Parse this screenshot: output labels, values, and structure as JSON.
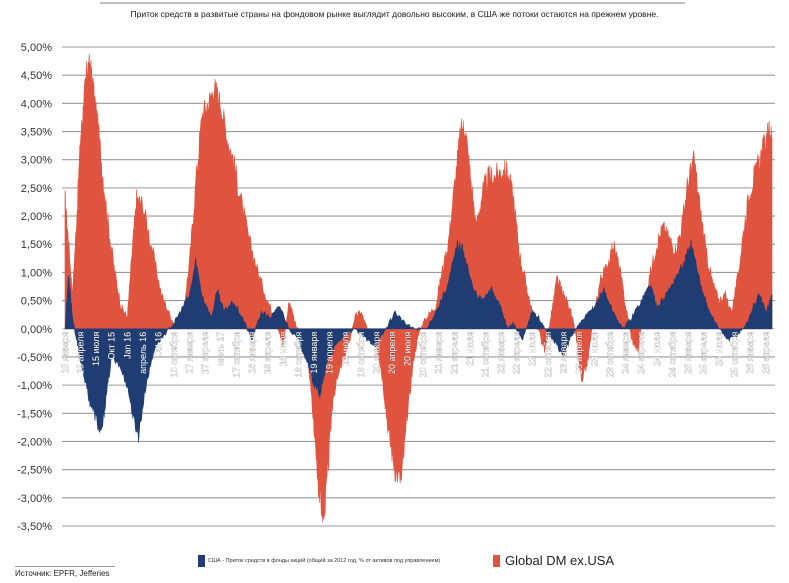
{
  "title": "Приток средств в развитые страны на фондовом рынке выглядит довольно высоким, в США же потоки остаются на прежнем уровне.",
  "source": "Источник: EPFR, Jefferies",
  "colors": {
    "us": "#1f3d73",
    "dm": "#e0533f",
    "grid": "#9a9a9a",
    "zero": "#cccccc"
  },
  "chart_data": {
    "type": "area",
    "title": "Приток средств в развитые страны на фондовом рынке выглядит довольно высоким, в США же потоки остаются на прежнем уровне.",
    "ylim": [
      -3.5,
      5.0
    ],
    "yticks": [
      "5,00%",
      "4,50%",
      "4,00%",
      "3,50%",
      "3,00%",
      "2,50%",
      "2,00%",
      "1,50%",
      "1,00%",
      "0,50%",
      "0,00%",
      "-0,50%",
      "-1,00%",
      "-1,50%",
      "-2,00%",
      "-2,50%",
      "-3,00%",
      "-3,50%"
    ],
    "grid": true,
    "legend_position": "bottom",
    "xticks": [
      {
        "label": "15 января",
        "t": 0.0
      },
      {
        "label": "15 апреля",
        "t": 0.25
      },
      {
        "label": "15 июля",
        "t": 0.5
      },
      {
        "label": "Окт 15",
        "t": 0.75
      },
      {
        "label": "Jan 16",
        "t": 1.0
      },
      {
        "label": "апрель 16",
        "t": 1.25
      },
      {
        "label": "Jul 16",
        "t": 1.5
      },
      {
        "label": "10 октября",
        "t": 1.75
      },
      {
        "label": "17 января",
        "t": 2.0
      },
      {
        "label": "17 апреля",
        "t": 2.25
      },
      {
        "label": "июль 17",
        "t": 2.5
      },
      {
        "label": "17 октября",
        "t": 2.75
      },
      {
        "label": "18 января",
        "t": 3.0
      },
      {
        "label": "18 апреля",
        "t": 3.25
      },
      {
        "label": "18 июля",
        "t": 3.5
      },
      {
        "label": "18 октября",
        "t": 3.75
      },
      {
        "label": "19 января",
        "t": 4.0
      },
      {
        "label": "19 апреля",
        "t": 4.25
      },
      {
        "label": "19 июля",
        "t": 4.5
      },
      {
        "label": "19 октября",
        "t": 4.75
      },
      {
        "label": "20 января",
        "t": 5.0
      },
      {
        "label": "20 апреля",
        "t": 5.25
      },
      {
        "label": "20 июля",
        "t": 5.5
      },
      {
        "label": "20 октября",
        "t": 5.75
      },
      {
        "label": "21 января",
        "t": 6.0
      },
      {
        "label": "21 апреля",
        "t": 6.25
      },
      {
        "label": "21 июля",
        "t": 6.5
      },
      {
        "label": "21 октября",
        "t": 6.75
      },
      {
        "label": "22 января",
        "t": 7.0
      },
      {
        "label": "22 апреля",
        "t": 7.25
      },
      {
        "label": "22 июля",
        "t": 7.5
      },
      {
        "label": "22 октября",
        "t": 7.75
      },
      {
        "label": "23 января",
        "t": 8.0
      },
      {
        "label": "23 апреля",
        "t": 8.25
      },
      {
        "label": "23 июля",
        "t": 8.5
      },
      {
        "label": "23 октября",
        "t": 8.75
      },
      {
        "label": "24 января",
        "t": 9.0
      },
      {
        "label": "24 апреля",
        "t": 9.25
      },
      {
        "label": "24 июля",
        "t": 9.5
      },
      {
        "label": "24 октября",
        "t": 9.75
      },
      {
        "label": "25 января",
        "t": 10.0
      },
      {
        "label": "25 апреля",
        "t": 10.25
      },
      {
        "label": "25 июля",
        "t": 10.5
      },
      {
        "label": "25 октября",
        "t": 10.75
      },
      {
        "label": "26 января",
        "t": 11.0
      },
      {
        "label": "26 апреля",
        "t": 11.25
      }
    ],
    "series": [
      {
        "name": "США - Приток средств в фонды акций (общий за 2012 год, % от активов под управлением)",
        "color": "#1f3d73",
        "points": [
          [
            0.0,
            0.0
          ],
          [
            0.06,
            1.0
          ],
          [
            0.12,
            0.2
          ],
          [
            0.2,
            -0.3
          ],
          [
            0.3,
            -0.8
          ],
          [
            0.4,
            -1.3
          ],
          [
            0.5,
            -1.6
          ],
          [
            0.58,
            -1.9
          ],
          [
            0.65,
            -1.3
          ],
          [
            0.75,
            -0.5
          ],
          [
            0.85,
            -0.6
          ],
          [
            1.0,
            -1.0
          ],
          [
            1.1,
            -1.6
          ],
          [
            1.18,
            -1.9
          ],
          [
            1.3,
            -1.0
          ],
          [
            1.45,
            -0.3
          ],
          [
            1.6,
            -0.1
          ],
          [
            1.75,
            0.1
          ],
          [
            1.85,
            0.3
          ],
          [
            2.0,
            0.6
          ],
          [
            2.1,
            1.2
          ],
          [
            2.2,
            0.6
          ],
          [
            2.35,
            0.2
          ],
          [
            2.45,
            0.7
          ],
          [
            2.55,
            0.3
          ],
          [
            2.7,
            0.5
          ],
          [
            2.85,
            0.2
          ],
          [
            3.0,
            -0.2
          ],
          [
            3.15,
            0.3
          ],
          [
            3.3,
            0.2
          ],
          [
            3.45,
            0.4
          ],
          [
            3.6,
            0.0
          ],
          [
            3.75,
            -0.2
          ],
          [
            3.9,
            -0.6
          ],
          [
            4.0,
            -1.0
          ],
          [
            4.1,
            -1.2
          ],
          [
            4.2,
            -0.6
          ],
          [
            4.35,
            -0.3
          ],
          [
            4.5,
            -0.1
          ],
          [
            4.65,
            0.0
          ],
          [
            4.85,
            -0.2
          ],
          [
            5.0,
            -0.3
          ],
          [
            5.15,
            0.0
          ],
          [
            5.3,
            0.3
          ],
          [
            5.45,
            0.1
          ],
          [
            5.6,
            0.0
          ],
          [
            5.8,
            0.0
          ],
          [
            6.0,
            0.4
          ],
          [
            6.15,
            0.8
          ],
          [
            6.3,
            1.5
          ],
          [
            6.4,
            1.4
          ],
          [
            6.55,
            0.7
          ],
          [
            6.7,
            0.5
          ],
          [
            6.85,
            0.7
          ],
          [
            7.0,
            0.4
          ],
          [
            7.1,
            0.0
          ],
          [
            7.2,
            0.1
          ],
          [
            7.35,
            -0.2
          ],
          [
            7.5,
            0.3
          ],
          [
            7.6,
            0.2
          ],
          [
            7.7,
            0.0
          ],
          [
            7.85,
            -0.2
          ],
          [
            8.0,
            -0.5
          ],
          [
            8.1,
            -0.2
          ],
          [
            8.2,
            0.0
          ],
          [
            8.35,
            0.2
          ],
          [
            8.5,
            0.4
          ],
          [
            8.65,
            0.7
          ],
          [
            8.8,
            0.3
          ],
          [
            8.95,
            0.0
          ],
          [
            9.1,
            0.2
          ],
          [
            9.25,
            0.5
          ],
          [
            9.4,
            0.8
          ],
          [
            9.5,
            0.4
          ],
          [
            9.65,
            0.6
          ],
          [
            9.8,
            0.9
          ],
          [
            9.95,
            1.2
          ],
          [
            10.05,
            1.5
          ],
          [
            10.2,
            0.8
          ],
          [
            10.35,
            0.3
          ],
          [
            10.5,
            0.0
          ],
          [
            10.65,
            -0.2
          ],
          [
            10.8,
            -0.1
          ],
          [
            10.95,
            0.1
          ],
          [
            11.05,
            0.4
          ],
          [
            11.15,
            0.6
          ],
          [
            11.25,
            0.3
          ],
          [
            11.35,
            0.6
          ]
        ]
      },
      {
        "name": "Global DM ex.USA",
        "color": "#e0533f",
        "points": [
          [
            0.0,
            2.3
          ],
          [
            0.06,
            1.5
          ],
          [
            0.12,
            0.6
          ],
          [
            0.18,
            1.8
          ],
          [
            0.25,
            3.4
          ],
          [
            0.3,
            4.0
          ],
          [
            0.35,
            4.6
          ],
          [
            0.4,
            4.7
          ],
          [
            0.45,
            4.3
          ],
          [
            0.52,
            3.7
          ],
          [
            0.6,
            2.8
          ],
          [
            0.7,
            1.8
          ],
          [
            0.8,
            1.0
          ],
          [
            0.9,
            0.4
          ],
          [
            1.0,
            0.2
          ],
          [
            1.08,
            1.4
          ],
          [
            1.15,
            2.3
          ],
          [
            1.25,
            2.2
          ],
          [
            1.4,
            1.4
          ],
          [
            1.55,
            0.6
          ],
          [
            1.7,
            0.2
          ],
          [
            1.8,
            0.0
          ],
          [
            1.9,
            0.3
          ],
          [
            2.0,
            1.2
          ],
          [
            2.1,
            2.6
          ],
          [
            2.2,
            3.8
          ],
          [
            2.3,
            4.0
          ],
          [
            2.4,
            4.3
          ],
          [
            2.5,
            4.0
          ],
          [
            2.6,
            3.4
          ],
          [
            2.7,
            3.0
          ],
          [
            2.8,
            2.4
          ],
          [
            2.95,
            1.6
          ],
          [
            3.1,
            1.0
          ],
          [
            3.25,
            0.5
          ],
          [
            3.4,
            0.1
          ],
          [
            3.5,
            -0.3
          ],
          [
            3.6,
            0.5
          ],
          [
            3.7,
            0.1
          ],
          [
            3.8,
            -0.2
          ],
          [
            3.9,
            -0.5
          ],
          [
            4.0,
            -1.8
          ],
          [
            4.08,
            -2.9
          ],
          [
            4.15,
            -3.4
          ],
          [
            4.22,
            -2.5
          ],
          [
            4.3,
            -1.2
          ],
          [
            4.45,
            -0.6
          ],
          [
            4.55,
            -0.3
          ],
          [
            4.65,
            0.2
          ],
          [
            4.75,
            0.3
          ],
          [
            4.85,
            0.0
          ],
          [
            5.0,
            -0.2
          ],
          [
            5.1,
            -0.9
          ],
          [
            5.2,
            -1.9
          ],
          [
            5.3,
            -2.5
          ],
          [
            5.4,
            -2.7
          ],
          [
            5.5,
            -1.5
          ],
          [
            5.6,
            -0.5
          ],
          [
            5.7,
            0.0
          ],
          [
            5.8,
            0.2
          ],
          [
            5.95,
            0.4
          ],
          [
            6.05,
            1.0
          ],
          [
            6.15,
            1.5
          ],
          [
            6.25,
            2.5
          ],
          [
            6.35,
            3.5
          ],
          [
            6.42,
            3.6
          ],
          [
            6.5,
            2.8
          ],
          [
            6.6,
            1.8
          ],
          [
            6.7,
            2.4
          ],
          [
            6.8,
            2.7
          ],
          [
            6.9,
            2.7
          ],
          [
            7.0,
            2.8
          ],
          [
            7.1,
            2.8
          ],
          [
            7.2,
            2.3
          ],
          [
            7.3,
            1.3
          ],
          [
            7.4,
            0.8
          ],
          [
            7.5,
            0.3
          ],
          [
            7.6,
            0.0
          ],
          [
            7.7,
            -0.4
          ],
          [
            7.8,
            0.2
          ],
          [
            7.9,
            0.9
          ],
          [
            8.0,
            0.6
          ],
          [
            8.1,
            0.4
          ],
          [
            8.2,
            -0.1
          ],
          [
            8.3,
            -1.0
          ],
          [
            8.4,
            -0.5
          ],
          [
            8.5,
            0.3
          ],
          [
            8.6,
            0.9
          ],
          [
            8.7,
            1.1
          ],
          [
            8.8,
            1.5
          ],
          [
            8.9,
            1.1
          ],
          [
            9.0,
            0.4
          ],
          [
            9.1,
            -0.2
          ],
          [
            9.2,
            -0.4
          ],
          [
            9.3,
            0.5
          ],
          [
            9.4,
            1.0
          ],
          [
            9.5,
            1.5
          ],
          [
            9.6,
            1.8
          ],
          [
            9.7,
            1.6
          ],
          [
            9.8,
            1.4
          ],
          [
            9.9,
            1.8
          ],
          [
            10.0,
            2.6
          ],
          [
            10.1,
            3.0
          ],
          [
            10.2,
            2.1
          ],
          [
            10.3,
            1.3
          ],
          [
            10.4,
            0.8
          ],
          [
            10.5,
            0.5
          ],
          [
            10.6,
            0.6
          ],
          [
            10.7,
            0.3
          ],
          [
            10.8,
            0.9
          ],
          [
            10.9,
            1.8
          ],
          [
            11.0,
            2.5
          ],
          [
            11.1,
            2.8
          ],
          [
            11.2,
            3.2
          ],
          [
            11.3,
            3.5
          ],
          [
            11.35,
            3.4
          ]
        ]
      }
    ]
  },
  "legend": {
    "us_label": "США - Приток средств в фонды акций (общий за 2012 год, % от активов под управлением)",
    "dm_label": "Global DM ex.USA"
  }
}
